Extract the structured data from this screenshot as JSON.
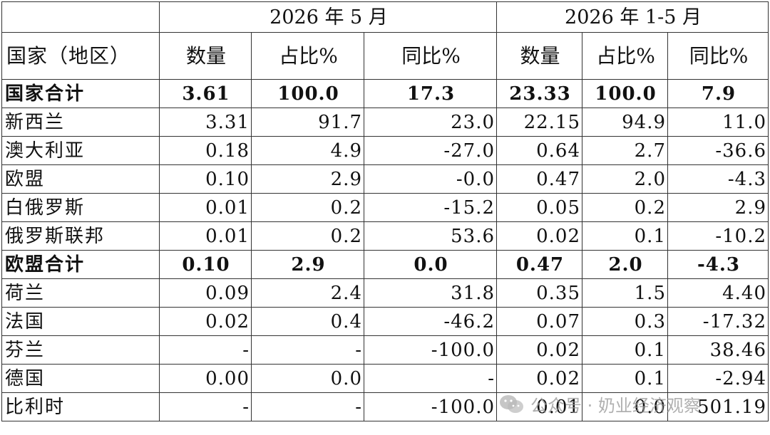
{
  "header": {
    "period_1": "2026 年 5 月",
    "period_2": "2026 年 1-5 月",
    "col_region": "国家（地区）",
    "col_qty_1": "数量",
    "col_share_1": "占比%",
    "col_yoy_1": "同比%",
    "col_qty_2": "数量",
    "col_share_2": "占比%",
    "col_yoy_2": "同比%"
  },
  "rows": [
    {
      "name": "国家合计",
      "q1": "3.61",
      "s1": "100.0",
      "y1": "17.3",
      "q2": "23.33",
      "s2": "100.0",
      "y2": "7.9"
    },
    {
      "name": "新西兰",
      "q1": "3.31",
      "s1": "91.7",
      "y1": "23.0",
      "q2": "22.15",
      "s2": "94.9",
      "y2": "11.0"
    },
    {
      "name": "澳大利亚",
      "q1": "0.18",
      "s1": "4.9",
      "y1": "-27.0",
      "q2": "0.64",
      "s2": "2.7",
      "y2": "-36.6"
    },
    {
      "name": "欧盟",
      "q1": "0.10",
      "s1": "2.9",
      "y1": "-0.0",
      "q2": "0.47",
      "s2": "2.0",
      "y2": "-4.3"
    },
    {
      "name": "白俄罗斯",
      "q1": "0.01",
      "s1": "0.2",
      "y1": "-15.2",
      "q2": "0.05",
      "s2": "0.2",
      "y2": "2.9"
    },
    {
      "name": "俄罗斯联邦",
      "q1": "0.01",
      "s1": "0.2",
      "y1": "53.6",
      "q2": "0.02",
      "s2": "0.1",
      "y2": "-10.2"
    },
    {
      "name": "欧盟合计",
      "q1": "0.10",
      "s1": "2.9",
      "y1": "0.0",
      "q2": "0.47",
      "s2": "2.0",
      "y2": "-4.3"
    },
    {
      "name": "荷兰",
      "q1": "0.09",
      "s1": "2.4",
      "y1": "31.8",
      "q2": "0.35",
      "s2": "1.5",
      "y2": "4.40"
    },
    {
      "name": "法国",
      "q1": "0.02",
      "s1": "0.4",
      "y1": "-46.2",
      "q2": "0.07",
      "s2": "0.3",
      "y2": "-17.32"
    },
    {
      "name": "芬兰",
      "q1": "-",
      "s1": "-",
      "y1": "-100.0",
      "q2": "0.02",
      "s2": "0.1",
      "y2": "38.46"
    },
    {
      "name": "德国",
      "q1": "0.00",
      "s1": "0.0",
      "y1": "-",
      "q2": "0.02",
      "s2": "0.1",
      "y2": "-2.94"
    },
    {
      "name": "比利时",
      "q1": "-",
      "s1": "-",
      "y1": "-100.0",
      "q2": "0.01",
      "s2": "0.0",
      "y2": "501.19"
    }
  ],
  "watermark": {
    "icon": "wechat-icon",
    "text": "公众号 · 奶业经济观察"
  }
}
